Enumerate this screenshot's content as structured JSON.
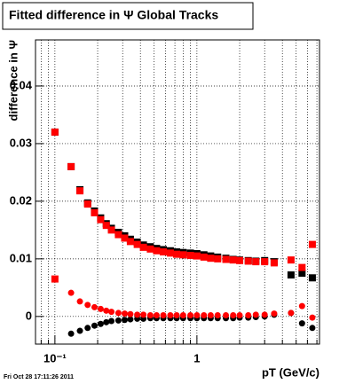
{
  "chart_data": {
    "type": "scatter",
    "title": "Fitted difference in  Ψ  Global Tracks",
    "y_label": "difference in Ψ",
    "x_label": "pT (GeV/c)",
    "timestamp": "Fri Oct 28 17:11:26 2011",
    "x_log": true,
    "grid": true,
    "xlim": [
      0.073,
      7.3
    ],
    "ylim": [
      -0.0048,
      0.048
    ],
    "xticks": [
      {
        "value": 0.1,
        "label": "10⁻¹"
      },
      1
    ],
    "xminor_ticks": [
      0.08,
      0.09,
      0.2,
      0.3,
      0.4,
      0.5,
      0.6,
      0.7,
      0.8,
      0.9,
      2,
      3,
      4,
      5,
      6,
      7
    ],
    "yticks": [
      0,
      0.01,
      0.02,
      0.03,
      0.04
    ],
    "x": [
      0.1,
      0.13,
      0.15,
      0.17,
      0.19,
      0.21,
      0.23,
      0.25,
      0.28,
      0.31,
      0.34,
      0.38,
      0.42,
      0.47,
      0.52,
      0.58,
      0.65,
      0.72,
      0.8,
      0.9,
      1.0,
      1.12,
      1.25,
      1.4,
      1.6,
      1.8,
      2.0,
      2.3,
      2.6,
      3.0,
      3.5,
      4.6,
      5.5,
      6.5
    ],
    "series": [
      {
        "color": "#000000",
        "values": [
          0.032,
          0.026,
          0.022,
          0.0197,
          0.0183,
          0.0171,
          0.0161,
          0.0153,
          0.0146,
          0.014,
          0.0134,
          0.0129,
          0.0124,
          0.0121,
          0.0118,
          0.0116,
          0.0114,
          0.0112,
          0.0111,
          0.011,
          0.0109,
          0.0107,
          0.0105,
          0.0103,
          0.0101,
          0.0099,
          0.0098,
          0.0097,
          0.0096,
          0.0097,
          0.0095,
          0.0072,
          0.0075,
          0.0067
        ]
      },
      {
        "color": "#ff0000",
        "values": [
          0.032,
          0.026,
          0.0218,
          0.0195,
          0.018,
          0.0168,
          0.0158,
          0.015,
          0.0142,
          0.0136,
          0.013,
          0.0125,
          0.012,
          0.0117,
          0.0114,
          0.0112,
          0.011,
          0.0108,
          0.0107,
          0.0106,
          0.0105,
          0.0103,
          0.0101,
          0.01,
          0.0099,
          0.0098,
          0.0097,
          0.0096,
          0.0095,
          0.0095,
          0.0093,
          0.0098,
          0.0085,
          0.0125
        ]
      },
      {
        "color": "#000000",
        "values": [
          null,
          -0.003,
          -0.0025,
          -0.002,
          -0.0016,
          -0.0013,
          -0.001,
          -0.0008,
          -0.0007,
          -0.0006,
          -0.0005,
          -0.0004,
          -0.0004,
          -0.0003,
          -0.0003,
          -0.0003,
          -0.0003,
          -0.0003,
          -0.0003,
          -0.0003,
          -0.0003,
          -0.0003,
          -0.0003,
          -0.0003,
          -0.0003,
          -0.0003,
          -0.0002,
          -0.0002,
          -0.0001,
          0,
          0.0003,
          0.0006,
          -0.0012,
          -0.002
        ]
      },
      {
        "color": "#ff0000",
        "values": [
          0.0065,
          0.0041,
          0.0026,
          0.002,
          0.0016,
          0.0013,
          0.001,
          0.0008,
          0.0006,
          0.0005,
          0.0004,
          0.0003,
          0.0003,
          0.0002,
          0.0002,
          0.0002,
          0.0002,
          0.0002,
          0.0002,
          0.0002,
          0.0002,
          0.0002,
          0.0002,
          0.0002,
          0.0002,
          0.0002,
          0.0002,
          0.0002,
          0.0003,
          0.0003,
          0.0005,
          0.0006,
          0.0018,
          -0.0002
        ]
      }
    ]
  }
}
